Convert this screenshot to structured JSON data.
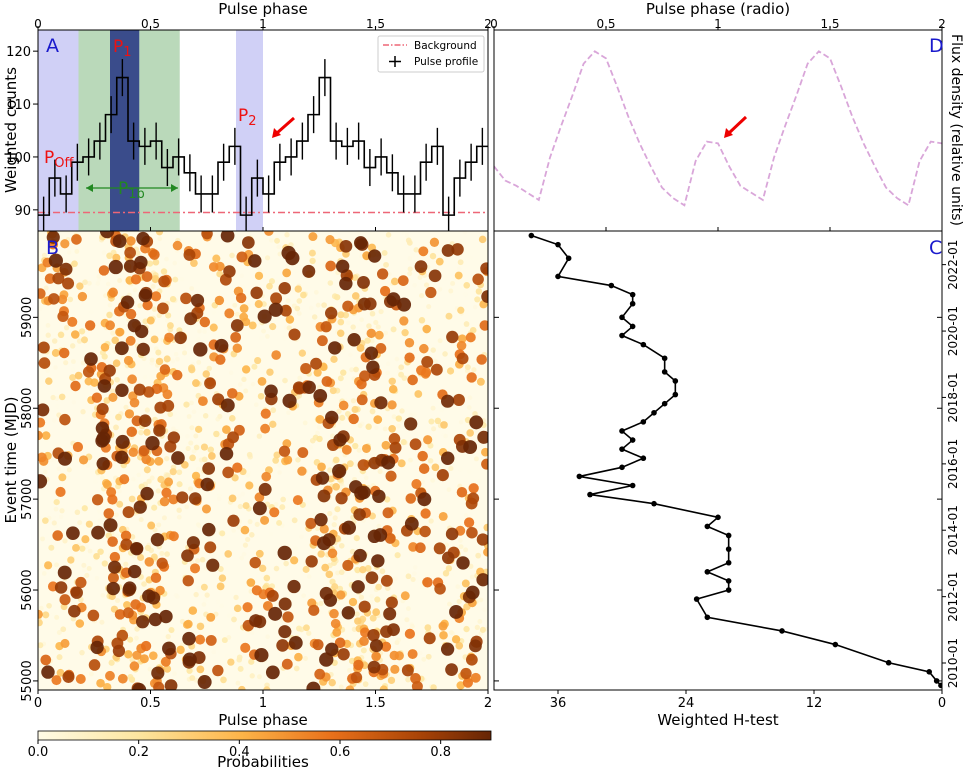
{
  "colors": {
    "background_line": "#ee6677",
    "profile": "#000000",
    "offpulse_band": "#aaaaee",
    "p1_band": "#66aa66",
    "peak_band": "#334488",
    "radio": "#d9a6d9",
    "arrow": "#ee0000",
    "panel_letter": "#1a1acc",
    "region_label": "#ee1111",
    "p1b_label": "#228822"
  },
  "chart_data": [
    {
      "panel": "A",
      "type": "line",
      "subtype": "step-histogram with error bars",
      "xlabel_top": "Pulse phase",
      "ylabel": "Weighted counts",
      "xlim": [
        0,
        2
      ],
      "ylim": [
        86,
        124
      ],
      "xticks": [
        "0",
        "0.5",
        "1",
        "1.5",
        "2"
      ],
      "yticks": [
        "90",
        "100",
        "110",
        "120"
      ],
      "bin_width": 0.05,
      "x": [
        0.025,
        0.075,
        0.125,
        0.175,
        0.225,
        0.275,
        0.325,
        0.375,
        0.425,
        0.475,
        0.525,
        0.575,
        0.625,
        0.675,
        0.725,
        0.775,
        0.825,
        0.875,
        0.925,
        0.975,
        1.025,
        1.075,
        1.125,
        1.175,
        1.225,
        1.275,
        1.325,
        1.375,
        1.425,
        1.475,
        1.525,
        1.575,
        1.625,
        1.675,
        1.725,
        1.775,
        1.825,
        1.875,
        1.925,
        1.975
      ],
      "counts": [
        89,
        96,
        93,
        99,
        100,
        103,
        108,
        115,
        103,
        102,
        103,
        98,
        100,
        97,
        93,
        93,
        99,
        102,
        89,
        96,
        93,
        99,
        100,
        103,
        108,
        115,
        103,
        102,
        103,
        98,
        100,
        97,
        93,
        93,
        99,
        102,
        89,
        96,
        99,
        102
      ],
      "error": 3.5,
      "background_level": 89.5,
      "legend": {
        "position": "top-right",
        "entries": [
          "Background",
          "Pulse profile"
        ]
      },
      "shaded_regions": [
        {
          "name": "P_Off",
          "from": 0.0,
          "to": 0.18
        },
        {
          "name": "P_1b",
          "from": 0.18,
          "to": 0.63
        },
        {
          "name": "P_1",
          "from": 0.32,
          "to": 0.45
        },
        {
          "name": "P_2",
          "from": 0.88,
          "to": 1.0
        }
      ],
      "labels": {
        "letter": "A",
        "poff": "P",
        "poff_sub": "Off",
        "p1": "P",
        "p1_sub": "1",
        "p2": "P",
        "p2_sub": "2",
        "p1b": "P",
        "p1b_sub": "1b"
      }
    },
    {
      "panel": "D",
      "type": "line",
      "xlabel_top": "Pulse phase (radio)",
      "ylabel_right": "Flux density (relative units)",
      "xlim": [
        0,
        2
      ],
      "ylim": [
        0,
        1
      ],
      "xticks": [
        "0",
        "0.5",
        "1",
        "1.5",
        "2"
      ],
      "x": [
        0.0,
        0.05,
        0.1,
        0.15,
        0.2,
        0.25,
        0.3,
        0.35,
        0.4,
        0.45,
        0.5,
        0.55,
        0.6,
        0.65,
        0.7,
        0.75,
        0.8,
        0.85,
        0.9,
        0.95,
        1.0,
        1.05,
        1.1,
        1.15,
        1.2,
        1.25,
        1.3,
        1.35,
        1.4,
        1.45,
        1.5,
        1.55,
        1.6,
        1.65,
        1.7,
        1.75,
        1.8,
        1.85,
        1.9,
        1.95,
        2.0
      ],
      "flux": [
        0.32,
        0.24,
        0.21,
        0.17,
        0.13,
        0.37,
        0.55,
        0.72,
        0.9,
        0.97,
        0.93,
        0.77,
        0.6,
        0.45,
        0.32,
        0.2,
        0.14,
        0.1,
        0.35,
        0.46,
        0.45,
        0.32,
        0.21,
        0.17,
        0.13,
        0.37,
        0.55,
        0.72,
        0.9,
        0.97,
        0.93,
        0.77,
        0.6,
        0.45,
        0.32,
        0.2,
        0.14,
        0.1,
        0.35,
        0.46,
        0.45
      ],
      "labels": {
        "letter": "D"
      }
    },
    {
      "panel": "B",
      "type": "scatter",
      "xlabel": "Pulse phase",
      "ylabel": "Event time (MJD)",
      "xlim": [
        0,
        2
      ],
      "ylim": [
        54900,
        59950
      ],
      "xticks": [
        "0",
        "0.5",
        "1",
        "1.5",
        "2"
      ],
      "yticks": [
        "55000",
        "56000",
        "57000",
        "58000",
        "59000"
      ],
      "n_points": 2200,
      "random_seed": 1234,
      "colorbar": {
        "label": "Probabilities",
        "ticks": [
          "0.0",
          "0.2",
          "0.4",
          "0.6",
          "0.8"
        ],
        "range": [
          0,
          0.9
        ]
      },
      "labels": {
        "letter": "B"
      }
    },
    {
      "panel": "C",
      "type": "line",
      "xlabel": "Weighted H-test",
      "xlim": [
        42,
        0
      ],
      "ylim": [
        54900,
        59950
      ],
      "xticks": [
        "36",
        "24",
        "12",
        "0"
      ],
      "right_ticks": [
        "2010-01",
        "2012-01",
        "2014-01",
        "2016-01",
        "2018-01",
        "2020-01",
        "2022-01"
      ],
      "y": [
        54950,
        55000,
        55100,
        55200,
        55400,
        55550,
        55700,
        55900,
        56000,
        56100,
        56200,
        56300,
        56450,
        56600,
        56700,
        56800,
        56950,
        57050,
        57150,
        57250,
        57350,
        57450,
        57550,
        57650,
        57750,
        57850,
        57950,
        58050,
        58150,
        58300,
        58400,
        58550,
        58700,
        58800,
        58900,
        59000,
        59150,
        59250,
        59350,
        59450,
        59650,
        59800,
        59900
      ],
      "h_test": [
        0.1,
        0.5,
        1.2,
        5,
        10,
        15,
        22,
        23,
        20,
        20,
        22,
        20,
        20,
        20,
        22,
        21,
        27,
        33,
        29,
        34,
        30,
        28,
        30,
        29,
        30,
        28,
        27,
        26,
        25,
        25,
        26,
        26,
        28,
        30,
        29,
        30,
        29,
        29,
        31,
        36,
        35,
        36,
        38.5
      ],
      "labels": {
        "letter": "C"
      }
    }
  ]
}
